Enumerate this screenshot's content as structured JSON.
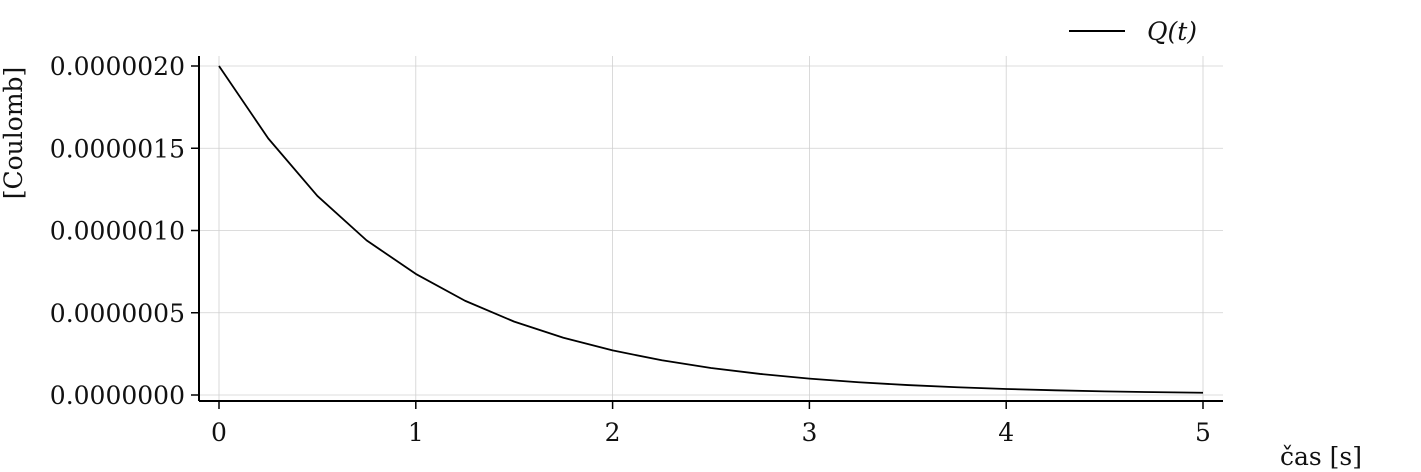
{
  "chart_data": {
    "type": "line",
    "title": "",
    "xlabel": "čas [s]",
    "ylabel": "[Coulomb]",
    "xlim": [
      0,
      5
    ],
    "ylim": [
      0,
      2e-06
    ],
    "x_ticks": [
      0,
      1,
      2,
      3,
      4,
      5
    ],
    "x_tick_labels": [
      "0",
      "1",
      "2",
      "3",
      "4",
      "5"
    ],
    "y_ticks": [
      0,
      5e-07,
      1e-06,
      1.5e-06,
      2e-06
    ],
    "y_tick_labels": [
      "0.0000000",
      "0.0000005",
      "0.0000010",
      "0.0000015",
      "0.0000020"
    ],
    "grid": true,
    "legend_position": "top-right",
    "series": [
      {
        "name": "Q(t)",
        "color": "#000000",
        "x": [
          0,
          0.25,
          0.5,
          0.75,
          1,
          1.25,
          1.5,
          1.75,
          2,
          2.25,
          2.5,
          2.75,
          3,
          3.25,
          3.5,
          3.75,
          4,
          4.25,
          4.5,
          4.75,
          5
        ],
        "y": [
          2e-06,
          1.56e-06,
          1.21e-06,
          9.4e-07,
          7.36e-07,
          5.73e-07,
          4.46e-07,
          3.48e-07,
          2.71e-07,
          2.11e-07,
          1.64e-07,
          1.28e-07,
          9.96e-08,
          7.76e-08,
          6.04e-08,
          4.7e-08,
          3.66e-08,
          2.85e-08,
          2.22e-08,
          1.73e-08,
          1.35e-08
        ]
      }
    ]
  }
}
